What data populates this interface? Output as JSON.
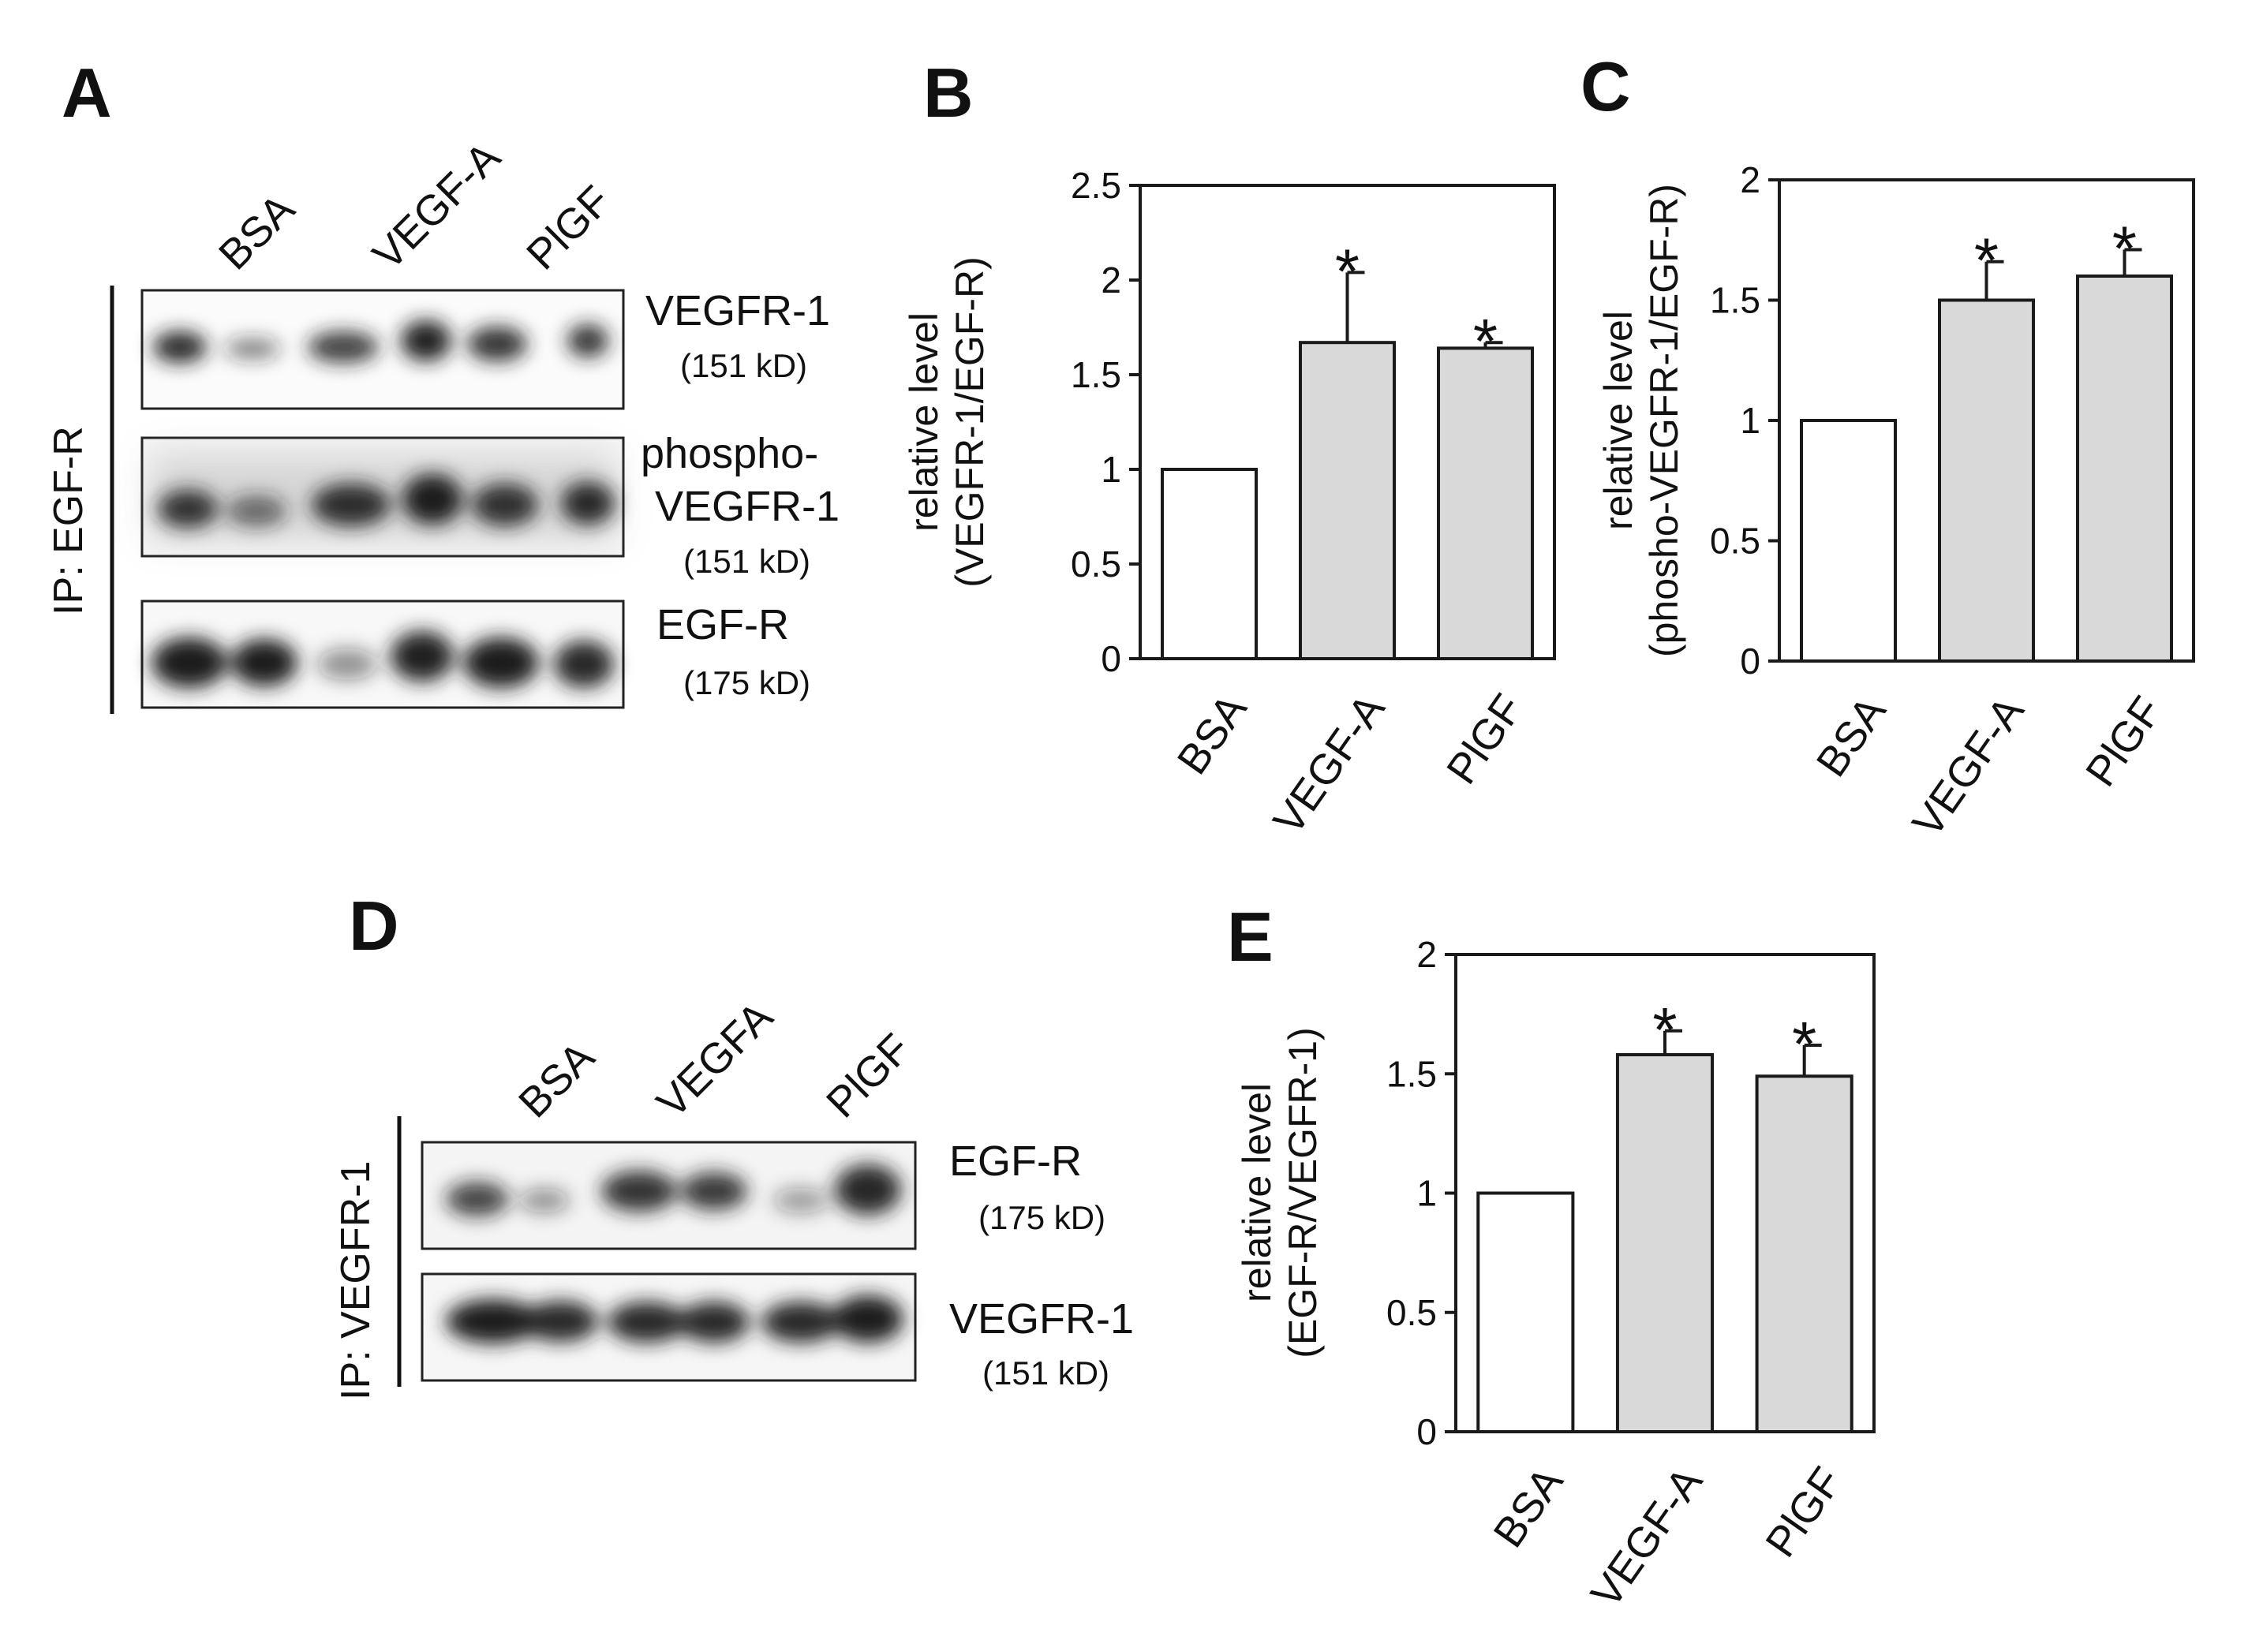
{
  "panels": {
    "A": {
      "letter": "A",
      "lanes": [
        "BSA",
        "VEGF-A",
        "PlGF"
      ],
      "ip_label": "IP: EGF-R",
      "blots": [
        {
          "protein": "VEGFR-1",
          "kd": "(151 kD)"
        },
        {
          "protein": "phospho-",
          "protein2": "VEGFR-1",
          "kd": "(151 kD)"
        },
        {
          "protein": "EGF-R",
          "kd": "(175 kD)"
        }
      ]
    },
    "D": {
      "letter": "D",
      "lanes": [
        "BSA",
        "VEGFA",
        "PlGF"
      ],
      "ip_label": "IP: VEGFR-1",
      "blots": [
        {
          "protein": "EGF-R",
          "kd": "(175 kD)"
        },
        {
          "protein": "VEGFR-1",
          "kd": "(151 kD)"
        }
      ]
    }
  },
  "colors": {
    "control_bar": "#ffffff",
    "treated_bar": "#d9d9d9",
    "axis": "#1a1a1a",
    "band": "#1c1c1c"
  },
  "chart_data": [
    {
      "panel": "B",
      "type": "bar",
      "categories": [
        "BSA",
        "VEGF-A",
        "PlGF"
      ],
      "values": [
        1.0,
        1.67,
        1.64
      ],
      "errors": [
        0,
        0.37,
        0.03
      ],
      "significant": [
        false,
        true,
        true
      ],
      "significance_marker": "*",
      "ylabel_line1": "relative level",
      "ylabel_line2": "(VEGFR-1/EGF-R)",
      "ylim": [
        0,
        2.5
      ],
      "yticks": [
        0,
        0.5,
        1,
        1.5,
        2,
        2.5
      ],
      "ytick_labels": [
        "0",
        "0.5",
        "1",
        "1.5",
        "2",
        "2.5"
      ]
    },
    {
      "panel": "C",
      "type": "bar",
      "categories": [
        "BSA",
        "VEGF-A",
        "PlGF"
      ],
      "values": [
        1.0,
        1.5,
        1.6
      ],
      "errors": [
        0,
        0.16,
        0.11
      ],
      "significant": [
        false,
        true,
        true
      ],
      "significance_marker": "*",
      "ylabel_line1": "relative level",
      "ylabel_line2": "(phosho-VEGFR-1/EGF-R)",
      "ylim": [
        0,
        2
      ],
      "yticks": [
        0,
        0.5,
        1,
        1.5,
        2
      ],
      "ytick_labels": [
        "0",
        "0.5",
        "1",
        "1.5",
        "2"
      ]
    },
    {
      "panel": "E",
      "type": "bar",
      "categories": [
        "BSA",
        "VEGF-A",
        "PlGF"
      ],
      "values": [
        1.0,
        1.58,
        1.49
      ],
      "errors": [
        0,
        0.1,
        0.13
      ],
      "significant": [
        false,
        true,
        true
      ],
      "significance_marker": "*",
      "ylabel_line1": "relative level",
      "ylabel_line2": "(EGF-R/VEGFR-1)",
      "ylim": [
        0,
        2
      ],
      "yticks": [
        0,
        0.5,
        1,
        1.5,
        2
      ],
      "ytick_labels": [
        "0",
        "0.5",
        "1",
        "1.5",
        "2"
      ]
    }
  ]
}
